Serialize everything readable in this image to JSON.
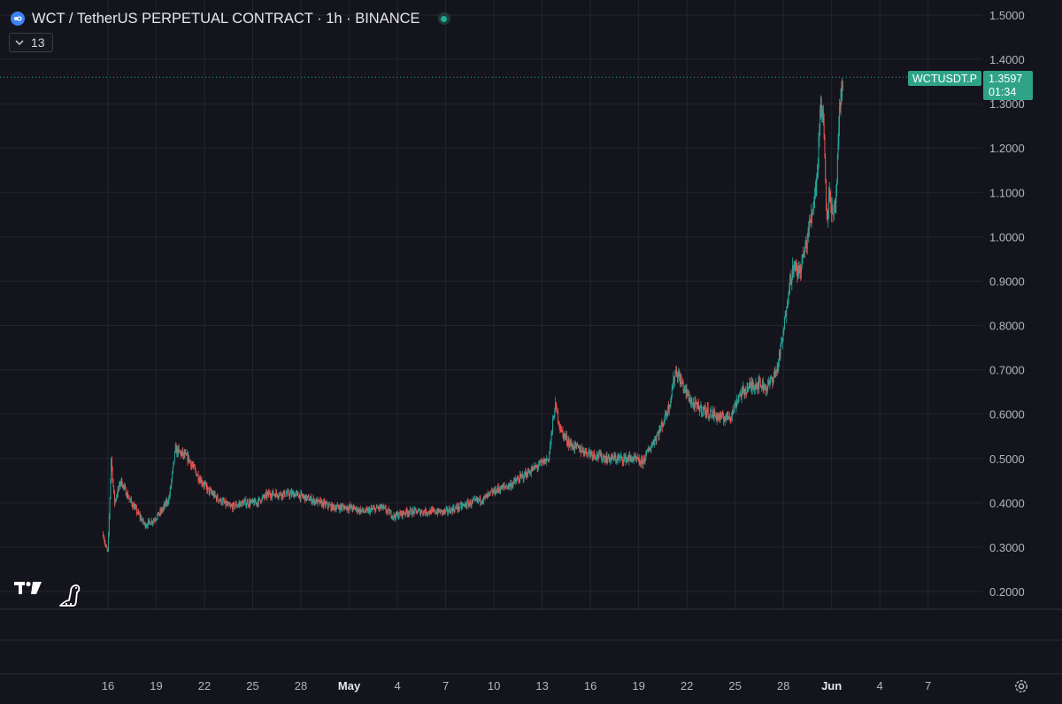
{
  "header": {
    "title": "WCT / TetherUS PERPETUAL CONTRACT · 1h · BINANCE",
    "indicator_count": "13"
  },
  "price_label": {
    "symbol": "WCTUSDT.P",
    "price": "1.3597",
    "countdown": "01:34"
  },
  "colors": {
    "background": "#14151c",
    "grid": "#23252e",
    "up": "#26a69a",
    "down": "#ef5350",
    "price_tag": "#2ea388",
    "text": "#d1d4dc"
  },
  "icons": [
    "logo-icon",
    "status-icon",
    "chevron-icon",
    "tradingview-logo-icon",
    "dinosaur-icon",
    "settings-icon"
  ],
  "chart_data": {
    "type": "candlestick",
    "symbol": "WCTUSDT.P",
    "interval": "1h",
    "y_axis": {
      "min": 0.17,
      "max": 1.5,
      "ticks": [
        "1.5000",
        "1.4000",
        "1.3000",
        "1.2000",
        "1.1000",
        "1.0000",
        "0.9000",
        "0.8000",
        "0.7000",
        "0.6000",
        "0.5000",
        "0.4000",
        "0.3000",
        "0.2000"
      ]
    },
    "x_axis": {
      "start_day": 14.5,
      "end_day": 38.5,
      "ticks": [
        {
          "day": 16,
          "label": "16",
          "bold": false
        },
        {
          "day": 19,
          "label": "19",
          "bold": false
        },
        {
          "day": 22,
          "label": "22",
          "bold": false
        },
        {
          "day": 25,
          "label": "25",
          "bold": false
        },
        {
          "day": 28,
          "label": "28",
          "bold": false
        },
        {
          "day": 31,
          "label": "May",
          "bold": true
        },
        {
          "day": 34,
          "label": "4",
          "bold": false
        },
        {
          "day": 37,
          "label": "7",
          "bold": false
        },
        {
          "day": 40,
          "label": "10",
          "bold": false
        },
        {
          "day": 43,
          "label": "13",
          "bold": false
        },
        {
          "day": 46,
          "label": "16",
          "bold": false
        },
        {
          "day": 49,
          "label": "19",
          "bold": false
        },
        {
          "day": 52,
          "label": "22",
          "bold": false
        },
        {
          "day": 55,
          "label": "25",
          "bold": false
        },
        {
          "day": 58,
          "label": "28",
          "bold": false
        },
        {
          "day": 61,
          "label": "Jun",
          "bold": true
        },
        {
          "day": 64,
          "label": "4",
          "bold": false
        },
        {
          "day": 67,
          "label": "7",
          "bold": false
        }
      ]
    },
    "last_price": 1.3597,
    "price_path": [
      [
        15.7,
        0.33
      ],
      [
        15.85,
        0.3
      ],
      [
        16.0,
        0.29
      ],
      [
        16.2,
        0.5
      ],
      [
        16.4,
        0.4
      ],
      [
        16.8,
        0.45
      ],
      [
        17.3,
        0.41
      ],
      [
        17.8,
        0.38
      ],
      [
        18.3,
        0.35
      ],
      [
        18.8,
        0.36
      ],
      [
        19.3,
        0.38
      ],
      [
        19.8,
        0.41
      ],
      [
        20.2,
        0.52
      ],
      [
        20.6,
        0.51
      ],
      [
        21.0,
        0.5
      ],
      [
        21.6,
        0.46
      ],
      [
        22.2,
        0.43
      ],
      [
        22.8,
        0.41
      ],
      [
        23.6,
        0.39
      ],
      [
        24.4,
        0.4
      ],
      [
        25.2,
        0.4
      ],
      [
        26.0,
        0.42
      ],
      [
        26.8,
        0.42
      ],
      [
        27.6,
        0.42
      ],
      [
        28.4,
        0.41
      ],
      [
        29.2,
        0.4
      ],
      [
        30.0,
        0.39
      ],
      [
        31.0,
        0.39
      ],
      [
        32.0,
        0.38
      ],
      [
        33.0,
        0.39
      ],
      [
        33.8,
        0.37
      ],
      [
        34.6,
        0.38
      ],
      [
        35.4,
        0.38
      ],
      [
        36.2,
        0.38
      ],
      [
        37.0,
        0.38
      ],
      [
        37.8,
        0.39
      ],
      [
        38.6,
        0.4
      ],
      [
        39.4,
        0.41
      ],
      [
        40.2,
        0.43
      ],
      [
        41.0,
        0.44
      ],
      [
        41.8,
        0.46
      ],
      [
        42.6,
        0.48
      ],
      [
        43.4,
        0.5
      ],
      [
        43.8,
        0.62
      ],
      [
        44.2,
        0.56
      ],
      [
        44.8,
        0.53
      ],
      [
        45.4,
        0.52
      ],
      [
        46.2,
        0.51
      ],
      [
        47.0,
        0.5
      ],
      [
        47.8,
        0.5
      ],
      [
        48.6,
        0.5
      ],
      [
        49.2,
        0.49
      ],
      [
        49.8,
        0.53
      ],
      [
        50.4,
        0.57
      ],
      [
        50.9,
        0.62
      ],
      [
        51.3,
        0.7
      ],
      [
        51.8,
        0.66
      ],
      [
        52.4,
        0.62
      ],
      [
        53.0,
        0.61
      ],
      [
        53.6,
        0.6
      ],
      [
        54.2,
        0.59
      ],
      [
        54.8,
        0.6
      ],
      [
        55.2,
        0.64
      ],
      [
        55.8,
        0.66
      ],
      [
        56.4,
        0.67
      ],
      [
        57.0,
        0.66
      ],
      [
        57.6,
        0.7
      ],
      [
        58.0,
        0.78
      ],
      [
        58.3,
        0.88
      ],
      [
        58.6,
        0.93
      ],
      [
        59.0,
        0.92
      ],
      [
        59.4,
        0.98
      ],
      [
        59.8,
        1.06
      ],
      [
        60.1,
        1.14
      ],
      [
        60.3,
        1.3
      ],
      [
        60.5,
        1.26
      ],
      [
        60.7,
        1.05
      ],
      [
        60.9,
        1.1
      ],
      [
        61.1,
        1.03
      ],
      [
        61.3,
        1.1
      ],
      [
        61.5,
        1.28
      ],
      [
        61.7,
        1.3597
      ]
    ]
  }
}
